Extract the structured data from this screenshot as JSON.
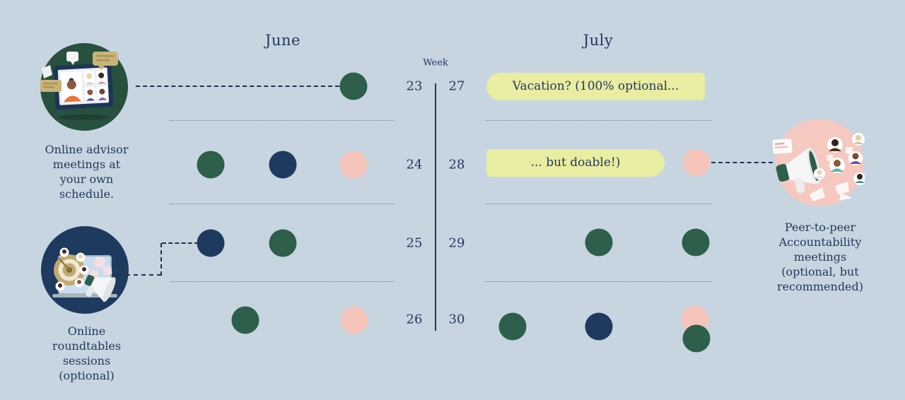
{
  "colors": {
    "background": "#c7d5e1",
    "green": "#2d5f4a",
    "navy": "#1e3a5f",
    "pink": "#f5c5bc",
    "yellow": "#e9eda2",
    "ink": "#24395b"
  },
  "months": {
    "june": "June",
    "july": "July"
  },
  "week_header": "Week",
  "weeks": {
    "june": [
      23,
      24,
      25,
      26
    ],
    "july": [
      27,
      28,
      29,
      30
    ]
  },
  "banners": {
    "vacation": "Vacation? (100% optional...",
    "doable": "... but doable!)"
  },
  "captions": {
    "advisor": "Online advisor\nmeetings at\nyour own\nschedule.",
    "roundtables": "Online\nroundtables\nsessions\n(optional)",
    "accountability": "Peer-to-peer\nAccountability\nmeetings\n(optional, but\nrecommended)"
  },
  "dot_legend": {
    "advisor": "green",
    "roundtable": "navy",
    "accountability": "pink"
  },
  "meetings": [
    {
      "week": 23,
      "dots": [
        "advisor"
      ]
    },
    {
      "week": 24,
      "dots": [
        "advisor",
        "roundtable",
        "accountability"
      ]
    },
    {
      "week": 25,
      "dots": [
        "roundtable",
        "advisor"
      ]
    },
    {
      "week": 26,
      "dots": [
        "advisor",
        "accountability"
      ]
    },
    {
      "week": 27,
      "dots": []
    },
    {
      "week": 28,
      "dots": [
        "accountability"
      ]
    },
    {
      "week": 29,
      "dots": [
        "advisor",
        "advisor"
      ]
    },
    {
      "week": 30,
      "dots": [
        "advisor",
        "roundtable",
        "accountability",
        "advisor"
      ]
    }
  ]
}
